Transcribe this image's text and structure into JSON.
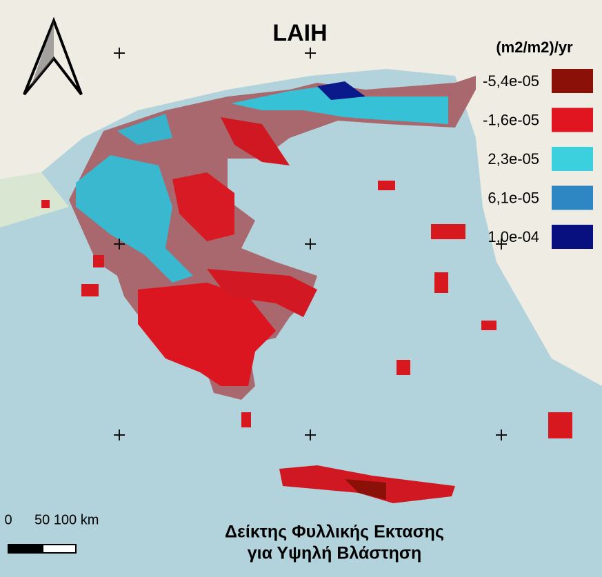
{
  "title": "LAIH",
  "legend": {
    "title": "(m2/m2)/yr",
    "items": [
      {
        "label": "-5,4e-05",
        "color": "#8b1008"
      },
      {
        "label": "-1,6e-05",
        "color": "#e0151f"
      },
      {
        "label": "2,3e-05",
        "color": "#3ccfdd"
      },
      {
        "label": "6,1e-05",
        "color": "#2e86c3"
      },
      {
        "label": "1,0e-04",
        "color": "#07107e"
      }
    ]
  },
  "scale_bar": {
    "labels": [
      "0",
      "50 100 km"
    ]
  },
  "caption": [
    "Δείκτης Φυλλικής Εκτασης",
    "για Υψηλή Βλάστηση"
  ]
}
